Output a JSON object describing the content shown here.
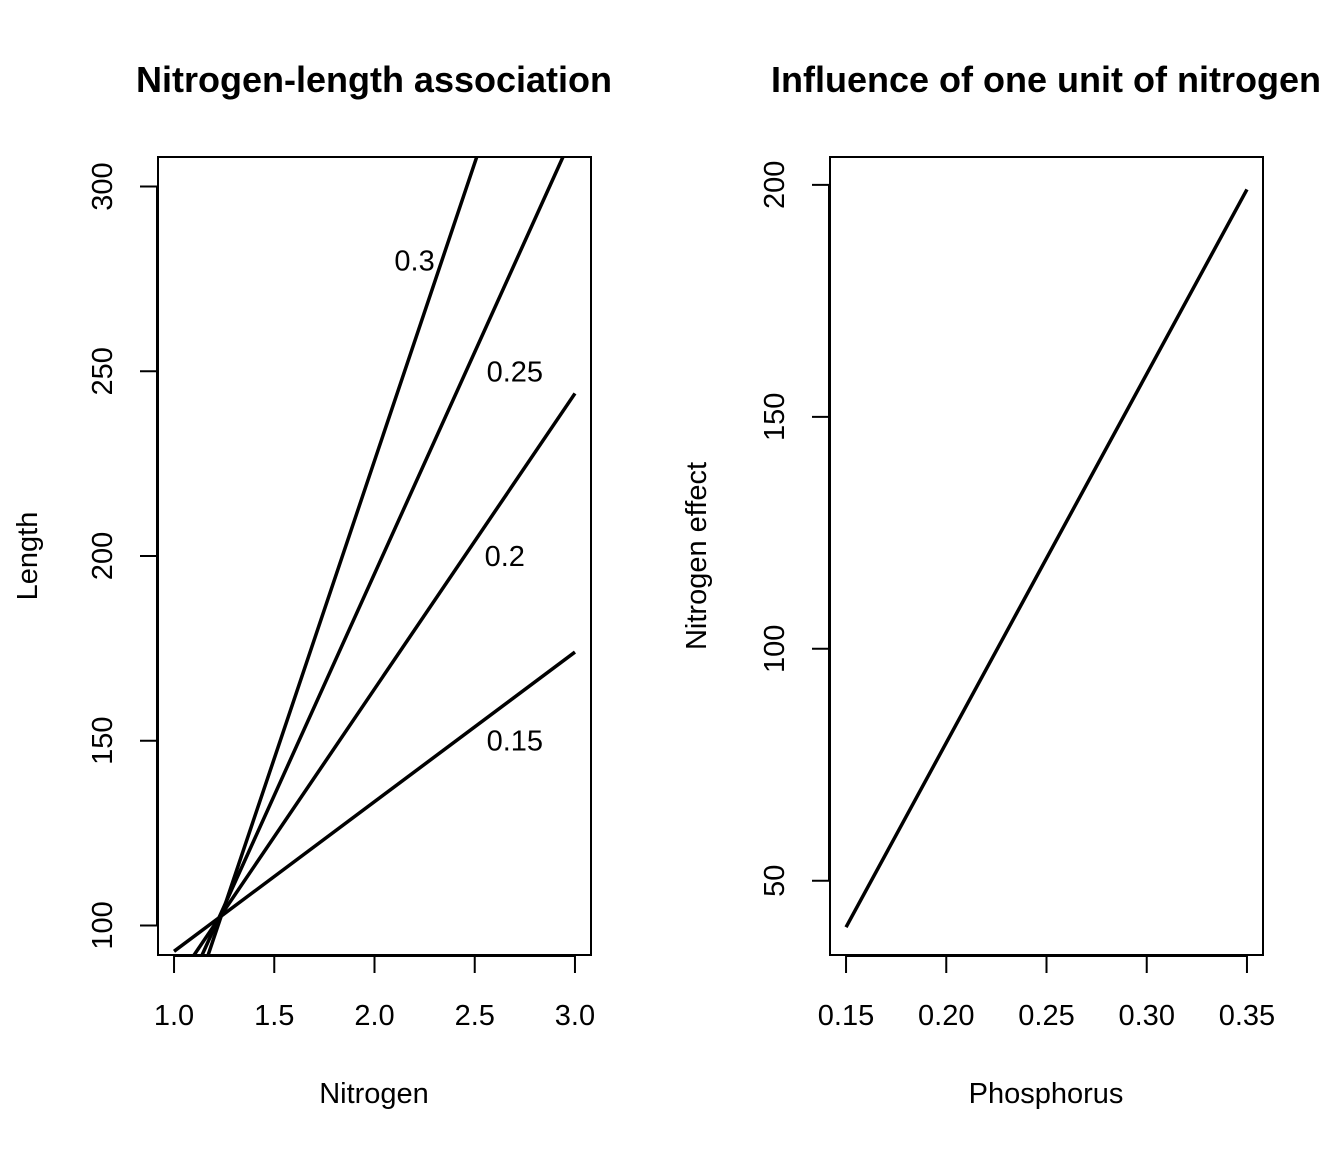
{
  "chart_data": [
    {
      "type": "line",
      "title": "Nitrogen-length association",
      "xlabel": "Nitrogen",
      "ylabel": "Length",
      "xlim": [
        0.92,
        3.08
      ],
      "ylim": [
        92,
        308
      ],
      "xticks": [
        1.0,
        1.5,
        2.0,
        2.5,
        3.0
      ],
      "xtick_labels": [
        "1.0",
        "1.5",
        "2.0",
        "2.5",
        "3.0"
      ],
      "yticks": [
        100,
        150,
        200,
        250,
        300
      ],
      "ytick_labels": [
        "100",
        "150",
        "200",
        "250",
        "300"
      ],
      "grid": false,
      "series": [
        {
          "label": "0.15",
          "label_at": [
            2.7,
            150
          ],
          "x": [
            1.0,
            3.0
          ],
          "y": [
            93,
            174
          ]
        },
        {
          "label": "0.2",
          "label_at": [
            2.65,
            200
          ],
          "x": [
            1.1,
            3.0
          ],
          "y": [
            92,
            244
          ]
        },
        {
          "label": "0.25",
          "label_at": [
            2.7,
            250
          ],
          "x": [
            1.14,
            2.94
          ],
          "y": [
            92,
            308
          ]
        },
        {
          "label": "0.3",
          "label_at": [
            2.2,
            280
          ],
          "x": [
            1.17,
            2.51
          ],
          "y": [
            92,
            308
          ]
        }
      ]
    },
    {
      "type": "line",
      "title": "Influence of one unit of nitrogen",
      "xlabel": "Phosphorus",
      "ylabel": "Nitrogen effect",
      "xlim": [
        0.142,
        0.358
      ],
      "ylim": [
        34,
        206
      ],
      "xticks": [
        0.15,
        0.2,
        0.25,
        0.3,
        0.35
      ],
      "xtick_labels": [
        "0.15",
        "0.20",
        "0.25",
        "0.30",
        "0.35"
      ],
      "yticks": [
        50,
        100,
        150,
        200
      ],
      "ytick_labels": [
        "50",
        "100",
        "150",
        "200"
      ],
      "grid": false,
      "series": [
        {
          "x": [
            0.15,
            0.35
          ],
          "y": [
            40,
            199
          ]
        }
      ]
    }
  ]
}
